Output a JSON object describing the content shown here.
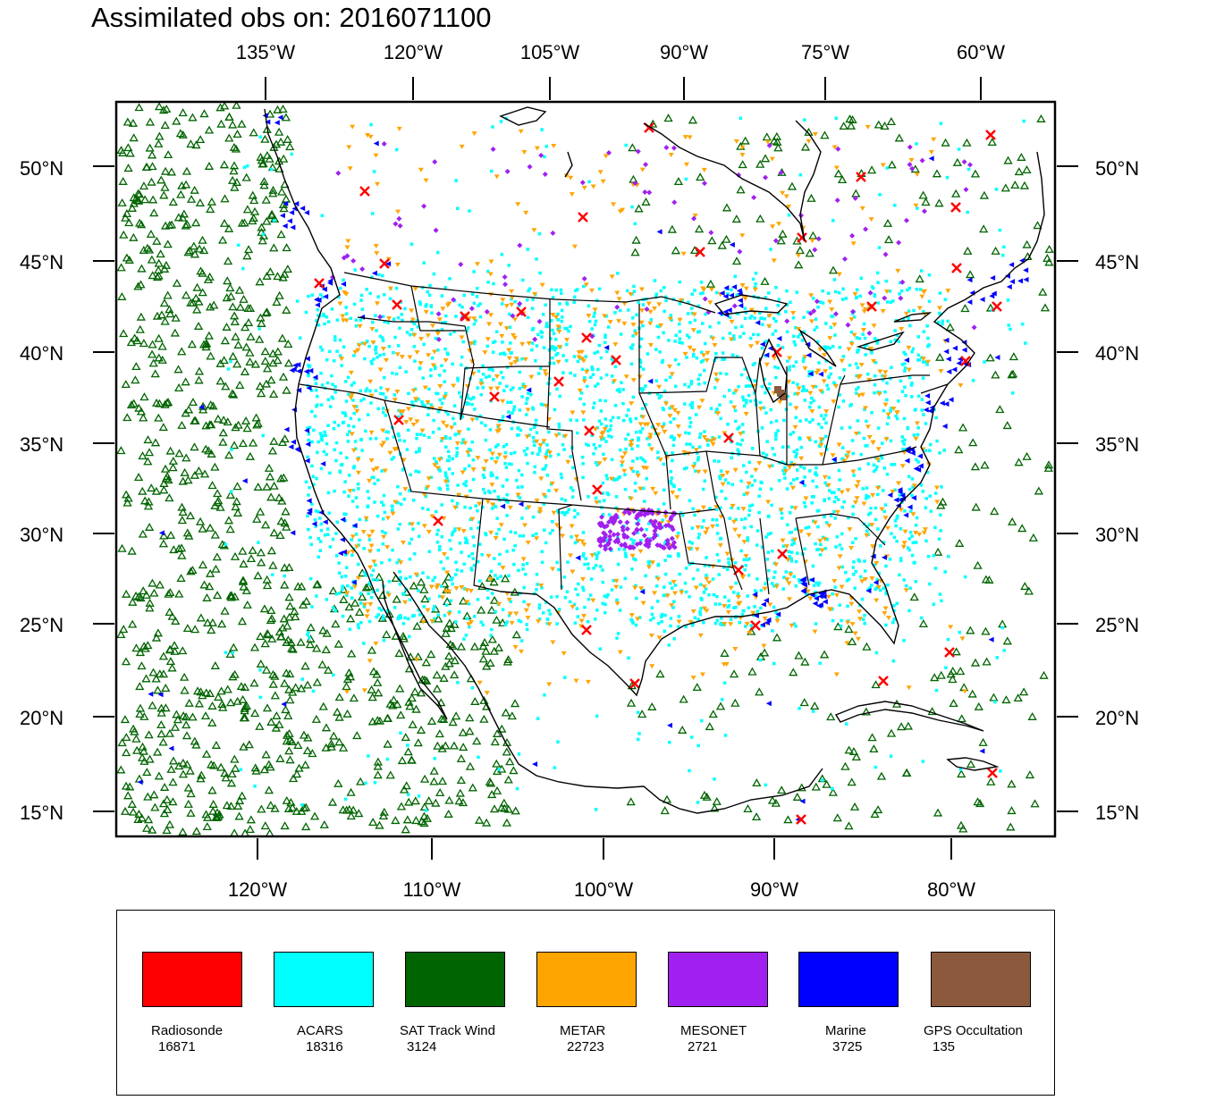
{
  "title": "Assimilated obs on: 2016071100",
  "top_lon_labels": [
    "135°W",
    "120°W",
    "105°W",
    "90°W",
    "75°W",
    "60°W"
  ],
  "bottom_lon_labels": [
    "120°W",
    "110°W",
    "100°W",
    "90°W",
    "80°W"
  ],
  "lat_labels": [
    "50°N",
    "45°N",
    "40°N",
    "35°N",
    "30°N",
    "25°N",
    "20°N",
    "15°N"
  ],
  "legend": [
    {
      "name": "Radiosonde",
      "count": "16871",
      "color": "#ff0000"
    },
    {
      "name": "ACARS",
      "count": "18316",
      "color": "#00ffff"
    },
    {
      "name": "SAT Track Wind",
      "count": "3124",
      "color": "#006400"
    },
    {
      "name": "METAR",
      "count": "22723",
      "color": "#ffa500"
    },
    {
      "name": "MESONET",
      "count": "2721",
      "color": "#a020f0"
    },
    {
      "name": "Marine",
      "count": "3725",
      "color": "#0000ff"
    },
    {
      "name": "GPS Occultation",
      "count": "135",
      "color": "#8b5a3c"
    }
  ]
}
